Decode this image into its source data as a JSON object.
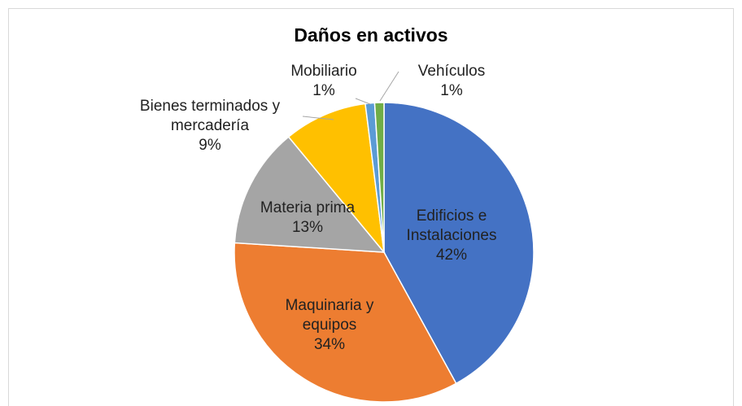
{
  "chart_data": {
    "type": "pie",
    "title": "Daños en activos",
    "categories": [
      "Edificios e\nInstalaciones",
      "Maquinaria y\nequipos",
      "Materia prima",
      "Bienes terminados y\nmercadería",
      "Mobiliario",
      "Vehículos"
    ],
    "values": [
      42,
      34,
      13,
      9,
      1,
      1
    ],
    "value_labels": [
      "42%",
      "34%",
      "13%",
      "9%",
      "1%",
      "1%"
    ],
    "colors": [
      "#4472c4",
      "#ed7d31",
      "#a5a5a5",
      "#ffc000",
      "#5b9bd5",
      "#70ad47"
    ]
  }
}
